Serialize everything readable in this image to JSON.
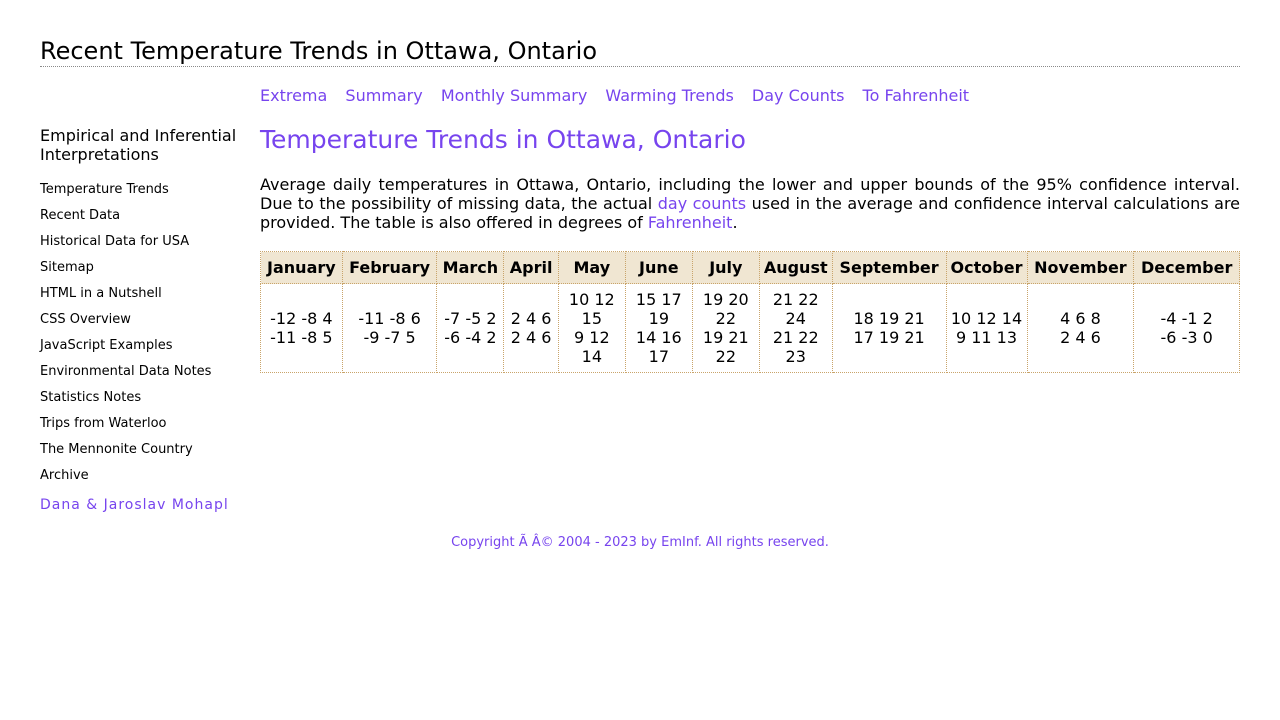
{
  "site_title": "Recent Temperature Trends in Ottawa, Ontario",
  "top_nav": [
    "Extrema",
    "Summary",
    "Monthly Summary",
    "Warming Trends",
    "Day Counts",
    "To Fahrenheit"
  ],
  "sidebar": {
    "heading": "Empirical and Inferential Interpretations",
    "items": [
      "Temperature Trends",
      "Recent Data",
      "Historical Data for USA",
      "Sitemap",
      "HTML in a Nutshell",
      "CSS Overview",
      "JavaScript Examples",
      "Environmental Data Notes",
      "Statistics Notes",
      "Trips from Waterloo",
      "The Mennonite Country",
      "Archive"
    ],
    "author": "Dana & Jaroslav Mohapl"
  },
  "main": {
    "heading": "Temperature Trends in Ottawa, Ontario",
    "intro_part1": "Average daily temperatures in Ottawa, Ontario, including the lower and upper bounds of the 95% confidence interval. Due to the possibility of missing data, the actual ",
    "intro_link1": "day counts",
    "intro_part2": " used in the average and confidence interval calculations are provided. The table is also offered in degrees of ",
    "intro_link2": "Fahrenheit",
    "intro_part3": "."
  },
  "table": {
    "headers": [
      "January",
      "February",
      "March",
      "April",
      "May",
      "June",
      "July",
      "August",
      "September",
      "October",
      "November",
      "December"
    ],
    "row1": [
      "-12 -8 4",
      "-11 -8 6",
      "-7 -5 2",
      "2 4 6",
      "10 12 15",
      "15 17 19",
      "19 20 22",
      "21 22 24",
      "18 19 21",
      "10 12 14",
      "4 6 8",
      "-4 -1 2"
    ],
    "row2": [
      "-11 -8 5",
      "-9 -7 5",
      "-6 -4 2",
      "2 4 6",
      "9 12 14",
      "14 16 17",
      "19 21 22",
      "21 22 23",
      "17 19 21",
      "9 11 13",
      "2 4 6",
      "-6 -3 0"
    ]
  },
  "footer": "Copyright Ã   Â© 2004 - 2023 by EmInf. All rights reserved."
}
